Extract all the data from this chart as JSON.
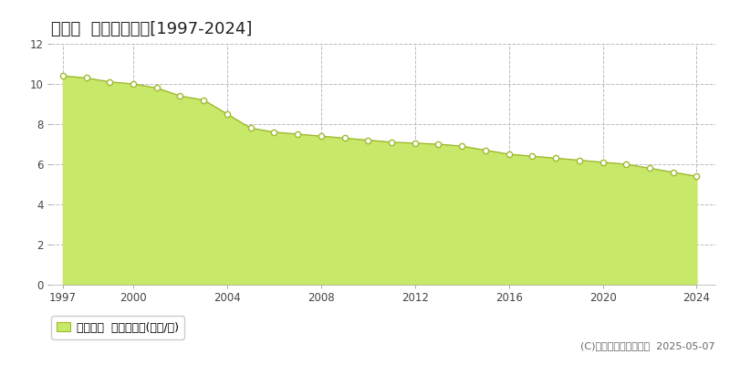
{
  "title": "高森町  基準地価推移[1997-2024]",
  "years": [
    1997,
    1998,
    1999,
    2000,
    2001,
    2002,
    2003,
    2004,
    2005,
    2006,
    2007,
    2008,
    2009,
    2010,
    2011,
    2012,
    2013,
    2014,
    2015,
    2016,
    2017,
    2018,
    2019,
    2020,
    2021,
    2022,
    2023,
    2024
  ],
  "values": [
    10.4,
    10.3,
    10.1,
    10.0,
    9.8,
    9.4,
    9.2,
    8.5,
    7.8,
    7.6,
    7.5,
    7.4,
    7.3,
    7.2,
    7.1,
    7.05,
    7.0,
    6.9,
    6.7,
    6.5,
    6.4,
    6.3,
    6.2,
    6.1,
    6.0,
    5.8,
    5.6,
    5.4
  ],
  "fill_color": "#c8e86a",
  "line_color": "#a0ba30",
  "marker_facecolor": "#ffffff",
  "marker_edgecolor": "#a0ba30",
  "grid_color": "#bbbbbb",
  "bg_color": "#ffffff",
  "plot_bg_color": "#ffffff",
  "ylim": [
    0,
    12
  ],
  "yticks": [
    0,
    2,
    4,
    6,
    8,
    10,
    12
  ],
  "xticks": [
    1997,
    2000,
    2004,
    2008,
    2012,
    2016,
    2020,
    2024
  ],
  "xlim_left": 1996.5,
  "xlim_right": 2024.8,
  "legend_label": "基準地価  平均坪単価(万円/坪)",
  "copyright_text": "(C)土地価格ドットコム  2025-05-07",
  "title_fontsize": 13,
  "tick_fontsize": 8.5,
  "legend_fontsize": 9,
  "copyright_fontsize": 8
}
